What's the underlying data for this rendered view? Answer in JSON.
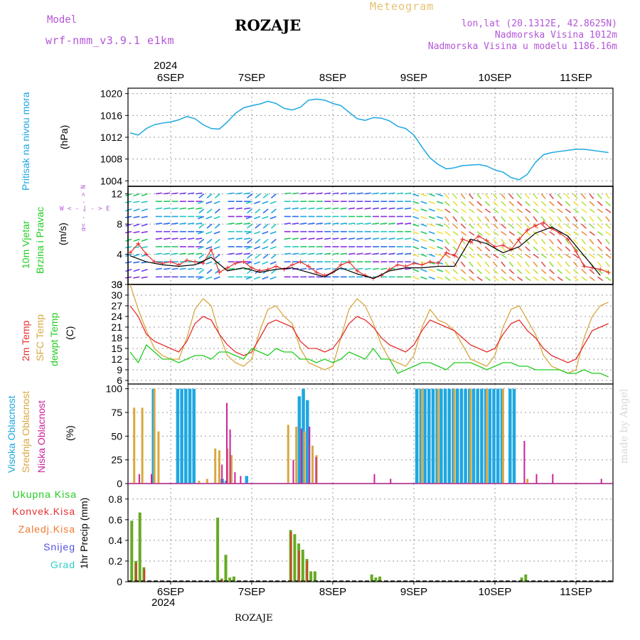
{
  "header": {
    "model_label": "Model",
    "model_name": "wrf-nmm_v3.9.1  e1km",
    "station": "ROZAJE",
    "title": "Meteogram",
    "lonlat": "lon,lat (20.1312E, 42.8625N)",
    "elevation": "Nadmorska Visina 1012m",
    "model_elevation": "Nadmorska Visina u modelu 1186.16m",
    "year_top": "2024",
    "year_bottom": "2024",
    "footer_station": "ROZAJE",
    "credit": "made by Angel"
  },
  "colors": {
    "pressure": "#1ea7e0",
    "wind_speed": "#e53030",
    "wind_gust": "#000000",
    "t2m": "#e53030",
    "sfc": "#d8a840",
    "dewpoint": "#22cc22",
    "cloud_high": "#1ea7e0",
    "cloud_mid": "#d8a840",
    "cloud_low": "#cc2299",
    "precip_total": "#66aa22",
    "precip_conv": "#e53030"
  },
  "x_ticks": [
    "6SEP",
    "7SEP",
    "8SEP",
    "9SEP",
    "10SEP",
    "11SEP"
  ],
  "panels": {
    "pressure": {
      "ylabel_left": "Pritisak na nivou mora",
      "ylabel_unit": "(hPa)"
    },
    "wind": {
      "ylabel_left1": "10m Vjetar",
      "ylabel_left2": "Brzina i Pravac",
      "ylabel_unit": "(m/s)",
      "compass_ns": "α< - - - > N",
      "compass_we": "W < - | - > E"
    },
    "temp": {
      "ylabel_t2m": "2m Temp",
      "ylabel_sfc": "SFC Temp",
      "ylabel_dew": "dewpt Temp",
      "ylabel_unit": "(C)"
    },
    "cloud": {
      "ylabel_high": "Visoka Oblacnost",
      "ylabel_mid": "Srednja Oblacnost",
      "ylabel_low": "Niska Oblacnost",
      "ylabel_unit": "(%)"
    },
    "precip": {
      "legend_total": "Ukupna Kisa",
      "legend_conv": "Konvek.Kisa",
      "legend_frz": "Zaledj.Kisa",
      "legend_snow": "Snijeg",
      "legend_hail": "Grad",
      "ylabel_unit": "1hr Precip (mm)"
    }
  },
  "chart_data": [
    {
      "type": "line",
      "name": "pressure",
      "x_unit": "days since 6SEP 00Z",
      "ylim": [
        1003,
        1021
      ],
      "yticks": [
        1004,
        1008,
        1012,
        1016,
        1020
      ],
      "series": [
        {
          "name": "Pritisak na nivou mora",
          "x": [
            -0.5,
            -0.4,
            -0.3,
            -0.2,
            -0.1,
            0,
            0.1,
            0.2,
            0.3,
            0.4,
            0.5,
            0.6,
            0.7,
            0.8,
            0.9,
            1,
            1.1,
            1.2,
            1.3,
            1.4,
            1.5,
            1.6,
            1.7,
            1.8,
            1.9,
            2,
            2.1,
            2.2,
            2.3,
            2.4,
            2.5,
            2.6,
            2.7,
            2.8,
            2.9,
            3,
            3.1,
            3.2,
            3.3,
            3.4,
            3.5,
            3.6,
            3.7,
            3.8,
            3.9,
            4,
            4.1,
            4.2,
            4.3,
            4.4,
            4.5,
            4.6,
            4.7,
            4.8,
            4.9,
            5,
            5.1,
            5.2,
            5.3,
            5.4,
            5.5
          ],
          "values": [
            1012.8,
            1012.4,
            1013.6,
            1014.3,
            1014.6,
            1014.8,
            1015.2,
            1015.8,
            1015.4,
            1014.3,
            1013.6,
            1013.5,
            1014.8,
            1016.4,
            1017.4,
            1017.8,
            1018.1,
            1018.6,
            1018.2,
            1017.3,
            1017.0,
            1017.5,
            1018.8,
            1019.0,
            1018.8,
            1018.2,
            1017.8,
            1016.6,
            1015.4,
            1015.1,
            1015.6,
            1015.5,
            1015.0,
            1014.0,
            1013.6,
            1012.4,
            1010.2,
            1008.2,
            1007.0,
            1006.2,
            1006.4,
            1006.8,
            1006.9,
            1007.0,
            1006.7,
            1006.0,
            1005.6,
            1004.6,
            1004.2,
            1005.2,
            1007.4,
            1008.8,
            1009.2,
            1009.4,
            1009.6,
            1009.8,
            1009.8,
            1009.6,
            1009.4,
            1009.2,
            1009.0
          ]
        }
      ]
    },
    {
      "type": "line",
      "name": "wind",
      "x_unit": "days since 6SEP 00Z",
      "ylim": [
        0,
        13
      ],
      "yticks": [
        0,
        4,
        8,
        12
      ],
      "series": [
        {
          "name": "speed",
          "x": [
            -0.5,
            -0.4,
            -0.3,
            -0.2,
            -0.1,
            0,
            0.1,
            0.2,
            0.3,
            0.4,
            0.5,
            0.6,
            0.7,
            0.8,
            0.9,
            1,
            1.1,
            1.2,
            1.3,
            1.4,
            1.5,
            1.6,
            1.7,
            1.8,
            1.9,
            2,
            2.1,
            2.2,
            2.3,
            2.4,
            2.5,
            2.6,
            2.7,
            2.8,
            2.9,
            3,
            3.1,
            3.2,
            3.3,
            3.4,
            3.5,
            3.6,
            3.7,
            3.8,
            3.9,
            4,
            4.1,
            4.2,
            4.3,
            4.4,
            4.5,
            4.6,
            4.7,
            4.8,
            4.9,
            5,
            5.1,
            5.2,
            5.3,
            5.4,
            5.5
          ],
          "values": [
            4.2,
            5.4,
            4.0,
            3.0,
            2.8,
            3.0,
            2.6,
            3.2,
            3.0,
            2.8,
            4.6,
            1.6,
            2.2,
            2.8,
            3.0,
            2.2,
            1.8,
            2.0,
            2.4,
            2.0,
            2.6,
            3.0,
            2.4,
            1.6,
            1.2,
            1.6,
            2.6,
            3.0,
            1.8,
            1.2,
            0.8,
            1.2,
            2.0,
            2.6,
            2.4,
            2.8,
            2.6,
            3.0,
            2.8,
            4.2,
            3.8,
            6.0,
            5.6,
            6.4,
            5.8,
            5.0,
            5.2,
            4.6,
            6.0,
            7.2,
            7.8,
            8.2,
            7.4,
            6.8,
            6.0,
            4.4,
            2.4,
            2.2,
            2.0,
            1.6,
            1.8
          ]
        },
        {
          "name": "gust",
          "x": [
            -0.5,
            -0.3,
            -0.1,
            0.1,
            0.3,
            0.5,
            0.7,
            0.9,
            1.1,
            1.3,
            1.5,
            1.7,
            1.9,
            2.1,
            2.3,
            2.5,
            2.7,
            2.9,
            3.1,
            3.3,
            3.5,
            3.7,
            3.9,
            4.1,
            4.3,
            4.5,
            4.7,
            4.9,
            5.1,
            5.3,
            5.5
          ],
          "values": [
            3.8,
            3.0,
            2.6,
            2.4,
            2.6,
            3.6,
            1.8,
            2.2,
            1.6,
            2.0,
            2.2,
            1.6,
            1.0,
            2.2,
            1.4,
            0.8,
            1.8,
            2.2,
            2.2,
            2.4,
            2.4,
            6.0,
            5.4,
            4.2,
            5.0,
            6.8,
            7.6,
            6.4,
            3.8,
            1.2,
            1.6
          ]
        }
      ]
    },
    {
      "type": "line",
      "name": "temperature",
      "x_unit": "days since 6SEP 00Z",
      "ylim": [
        5,
        33
      ],
      "yticks": [
        6,
        9,
        12,
        15,
        18,
        21,
        24,
        27,
        30,
        33
      ],
      "series": [
        {
          "name": "2m Temp",
          "x": [
            -0.5,
            -0.4,
            -0.3,
            -0.2,
            -0.1,
            0,
            0.1,
            0.2,
            0.3,
            0.4,
            0.5,
            0.6,
            0.7,
            0.8,
            0.9,
            1,
            1.1,
            1.2,
            1.3,
            1.4,
            1.5,
            1.6,
            1.7,
            1.8,
            1.9,
            2,
            2.1,
            2.2,
            2.3,
            2.4,
            2.5,
            2.6,
            2.7,
            2.8,
            2.9,
            3,
            3.1,
            3.2,
            3.3,
            3.4,
            3.5,
            3.6,
            3.7,
            3.8,
            3.9,
            4,
            4.1,
            4.2,
            4.3,
            4.4,
            4.5,
            4.6,
            4.7,
            4.8,
            4.9,
            5,
            5.1,
            5.2,
            5.3,
            5.4,
            5.5
          ],
          "values": [
            27,
            24,
            19,
            17,
            16,
            15,
            14,
            17,
            22,
            24,
            23,
            19,
            16,
            14,
            13,
            14,
            18,
            22,
            23,
            22,
            21,
            17,
            15,
            15,
            14,
            15,
            18,
            22,
            24,
            23,
            21,
            18,
            16,
            15,
            14,
            16,
            20,
            23,
            22,
            21,
            20,
            18,
            16,
            15,
            14,
            15,
            19,
            22,
            23,
            20,
            18,
            15,
            13,
            12,
            11,
            12,
            16,
            20,
            21,
            22,
            22
          ]
        },
        {
          "name": "SFC Temp",
          "x": [
            -0.5,
            -0.4,
            -0.3,
            -0.2,
            -0.1,
            0,
            0.1,
            0.2,
            0.3,
            0.4,
            0.5,
            0.6,
            0.7,
            0.8,
            0.9,
            1,
            1.1,
            1.2,
            1.3,
            1.4,
            1.5,
            1.6,
            1.7,
            1.8,
            1.9,
            2,
            2.1,
            2.2,
            2.3,
            2.4,
            2.5,
            2.6,
            2.7,
            2.8,
            2.9,
            3,
            3.1,
            3.2,
            3.3,
            3.4,
            3.5,
            3.6,
            3.7,
            3.8,
            3.9,
            4,
            4.1,
            4.2,
            4.3,
            4.4,
            4.5,
            4.6,
            4.7,
            4.8,
            4.9,
            5,
            5.1,
            5.2,
            5.3,
            5.4,
            5.5
          ],
          "values": [
            33,
            26,
            20,
            15,
            13,
            12,
            12,
            18,
            26,
            29,
            27,
            19,
            13,
            11,
            10,
            12,
            20,
            26,
            27,
            24,
            22,
            15,
            11,
            10,
            9,
            10,
            18,
            26,
            29,
            27,
            22,
            16,
            12,
            11,
            10,
            13,
            21,
            26,
            23,
            22,
            20,
            16,
            12,
            11,
            10,
            13,
            21,
            26,
            27,
            23,
            19,
            13,
            10,
            9,
            8,
            9,
            18,
            24,
            27,
            28,
            28
          ]
        },
        {
          "name": "dewpt Temp",
          "x": [
            -0.5,
            -0.4,
            -0.3,
            -0.2,
            -0.1,
            0,
            0.1,
            0.2,
            0.3,
            0.4,
            0.5,
            0.6,
            0.7,
            0.8,
            0.9,
            1,
            1.1,
            1.2,
            1.3,
            1.4,
            1.5,
            1.6,
            1.7,
            1.8,
            1.9,
            2,
            2.1,
            2.2,
            2.3,
            2.4,
            2.5,
            2.6,
            2.7,
            2.8,
            2.9,
            3,
            3.1,
            3.2,
            3.3,
            3.4,
            3.5,
            3.6,
            3.7,
            3.8,
            3.9,
            4,
            4.1,
            4.2,
            4.3,
            4.4,
            4.5,
            4.6,
            4.7,
            4.8,
            4.9,
            5,
            5.1,
            5.2,
            5.3,
            5.4,
            5.5
          ],
          "values": [
            14,
            11,
            16,
            14,
            12,
            12,
            11,
            12,
            13,
            13,
            12,
            14,
            14,
            13,
            12,
            15,
            14,
            13,
            15,
            14,
            14,
            12,
            12,
            11,
            12,
            11,
            12,
            14,
            13,
            12,
            15,
            12,
            12,
            8,
            9,
            10,
            11,
            11,
            10,
            9,
            11,
            11,
            11,
            10,
            9,
            10,
            11,
            11,
            10,
            10,
            9,
            9,
            9,
            9,
            8,
            8,
            9,
            8,
            8,
            7,
            7
          ]
        }
      ]
    },
    {
      "type": "bar",
      "name": "cloud",
      "x_unit": "days since 6SEP 00Z",
      "ylim": [
        0,
        105
      ],
      "yticks": [
        0,
        25,
        50,
        75,
        100
      ],
      "series": [
        {
          "name": "Visoka Oblacnost",
          "x": [
            -0.2,
            0.1,
            0.15,
            0.2,
            0.25,
            0.3,
            0.65,
            0.7,
            0.95,
            1.6,
            1.65,
            1.7,
            3.05,
            3.1,
            3.15,
            3.2,
            3.25,
            3.3,
            3.35,
            3.4,
            3.45,
            3.5,
            3.55,
            3.6,
            3.65,
            3.7,
            3.75,
            3.8,
            3.85,
            3.9,
            3.95,
            4.0,
            4.05,
            4.1,
            4.2,
            4.25
          ],
          "values": [
            100,
            100,
            100,
            100,
            100,
            100,
            5,
            3,
            8,
            92,
            100,
            88,
            100,
            100,
            100,
            100,
            100,
            100,
            100,
            100,
            100,
            100,
            100,
            100,
            100,
            100,
            100,
            100,
            100,
            100,
            100,
            100,
            100,
            100,
            100,
            100
          ]
        },
        {
          "name": "Srednja Oblacnost",
          "x": [
            -0.45,
            -0.35,
            -0.2,
            -0.15,
            0.35,
            0.45,
            0.55,
            0.6,
            0.7,
            0.75,
            1.45,
            1.55,
            1.65,
            1.75,
            1.8,
            3.1,
            3.3,
            3.5,
            3.7,
            3.9,
            4.1,
            4.4
          ],
          "values": [
            80,
            80,
            100,
            55,
            3,
            5,
            37,
            35,
            37,
            30,
            62,
            60,
            55,
            40,
            30,
            100,
            100,
            100,
            100,
            100,
            100,
            5
          ]
        },
        {
          "name": "Niska Oblacnost",
          "x": [
            -0.4,
            -0.25,
            0.62,
            0.68,
            0.72,
            0.78,
            0.85,
            1.5,
            1.6,
            1.7,
            1.78,
            2.5,
            2.7,
            4.35,
            4.5,
            4.7,
            5.3
          ],
          "values": [
            10,
            10,
            20,
            85,
            57,
            12,
            8,
            25,
            58,
            60,
            28,
            10,
            5,
            45,
            10,
            10,
            5
          ]
        }
      ]
    },
    {
      "type": "bar",
      "name": "precipitation",
      "x_unit": "days since 6SEP 00Z",
      "ylim": [
        0,
        0.95
      ],
      "yticks": [
        0,
        0.2,
        0.4,
        0.6,
        0.8
      ],
      "series": [
        {
          "name": "Ukupna Kisa",
          "x": [
            -0.48,
            -0.43,
            -0.38,
            -0.33,
            0.58,
            0.63,
            0.68,
            0.73,
            0.78,
            1.48,
            1.53,
            1.58,
            1.63,
            1.68,
            1.73,
            1.78,
            2.48,
            2.53,
            2.58,
            4.33,
            4.38
          ],
          "values": [
            0.59,
            0.2,
            0.67,
            0.14,
            0.62,
            0.03,
            0.26,
            0.04,
            0.05,
            0.5,
            0.46,
            0.37,
            0.31,
            0.22,
            0.1,
            0.1,
            0.07,
            0.04,
            0.05,
            0.04,
            0.07
          ]
        },
        {
          "name": "Konvek.Kisa",
          "x": [
            -0.43,
            -0.33,
            0.63,
            1.48,
            1.58,
            1.68
          ],
          "values": [
            0.18,
            0.12,
            0.02,
            0.48,
            0.3,
            0.2
          ]
        }
      ]
    }
  ]
}
